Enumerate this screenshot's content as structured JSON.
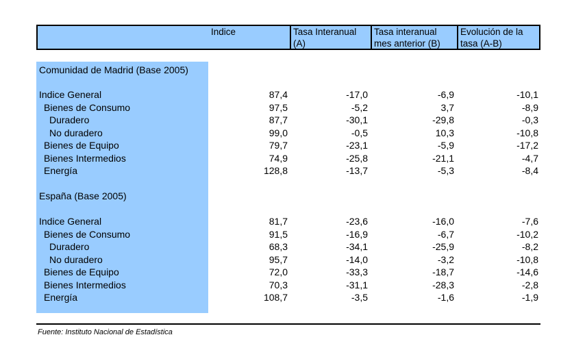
{
  "header": {
    "col_index": "Indice",
    "col_a_line1": "Tasa Interanual",
    "col_a_line2": "(A)",
    "col_b_line1": "Tasa interanual",
    "col_b_line2": "mes anterior (B)",
    "col_c_line1": "Evolución de la",
    "col_c_line2": "tasa (A-B)"
  },
  "sections": [
    {
      "title": "Comunidad de Madrid (Base 2005)",
      "rows": [
        {
          "label": "Indice General",
          "indice": "87,4",
          "a": "-17,0",
          "b": "-6,9",
          "ab": "-10,1"
        },
        {
          "label": "Bienes de Consumo",
          "indice": "97,5",
          "a": "-5,2",
          "b": "3,7",
          "ab": "-8,9"
        },
        {
          "label": "Duradero",
          "indice": "87,7",
          "a": "-30,1",
          "b": "-29,8",
          "ab": "-0,3"
        },
        {
          "label": "No duradero",
          "indice": "99,0",
          "a": "-0,5",
          "b": "10,3",
          "ab": "-10,8"
        },
        {
          "label": "Bienes de Equipo",
          "indice": "79,7",
          "a": "-23,1",
          "b": "-5,9",
          "ab": "-17,2"
        },
        {
          "label": "Bienes Intermedios",
          "indice": "74,9",
          "a": "-25,8",
          "b": "-21,1",
          "ab": "-4,7"
        },
        {
          "label": "Energía",
          "indice": "128,8",
          "a": "-13,7",
          "b": "-5,3",
          "ab": "-8,4"
        }
      ]
    },
    {
      "title": "España (Base 2005)",
      "rows": [
        {
          "label": "Indice General",
          "indice": "81,7",
          "a": "-23,6",
          "b": "-16,0",
          "ab": "-7,6"
        },
        {
          "label": "Bienes de Consumo",
          "indice": "91,5",
          "a": "-16,9",
          "b": "-6,7",
          "ab": "-10,2"
        },
        {
          "label": "Duradero",
          "indice": "68,3",
          "a": "-34,1",
          "b": "-25,9",
          "ab": "-8,2"
        },
        {
          "label": "No duradero",
          "indice": "95,7",
          "a": "-14,0",
          "b": "-3,2",
          "ab": "-10,8"
        },
        {
          "label": "Bienes de Equipo",
          "indice": "72,0",
          "a": "-33,3",
          "b": "-18,7",
          "ab": "-14,6"
        },
        {
          "label": "Bienes Intermedios",
          "indice": "70,3",
          "a": "-31,1",
          "b": "-28,3",
          "ab": "-2,8"
        },
        {
          "label": "Energía",
          "indice": "108,7",
          "a": "-3,5",
          "b": "-1,6",
          "ab": "-1,9"
        }
      ]
    }
  ],
  "source": "Fuente: Instituto Nacional de Estadística"
}
